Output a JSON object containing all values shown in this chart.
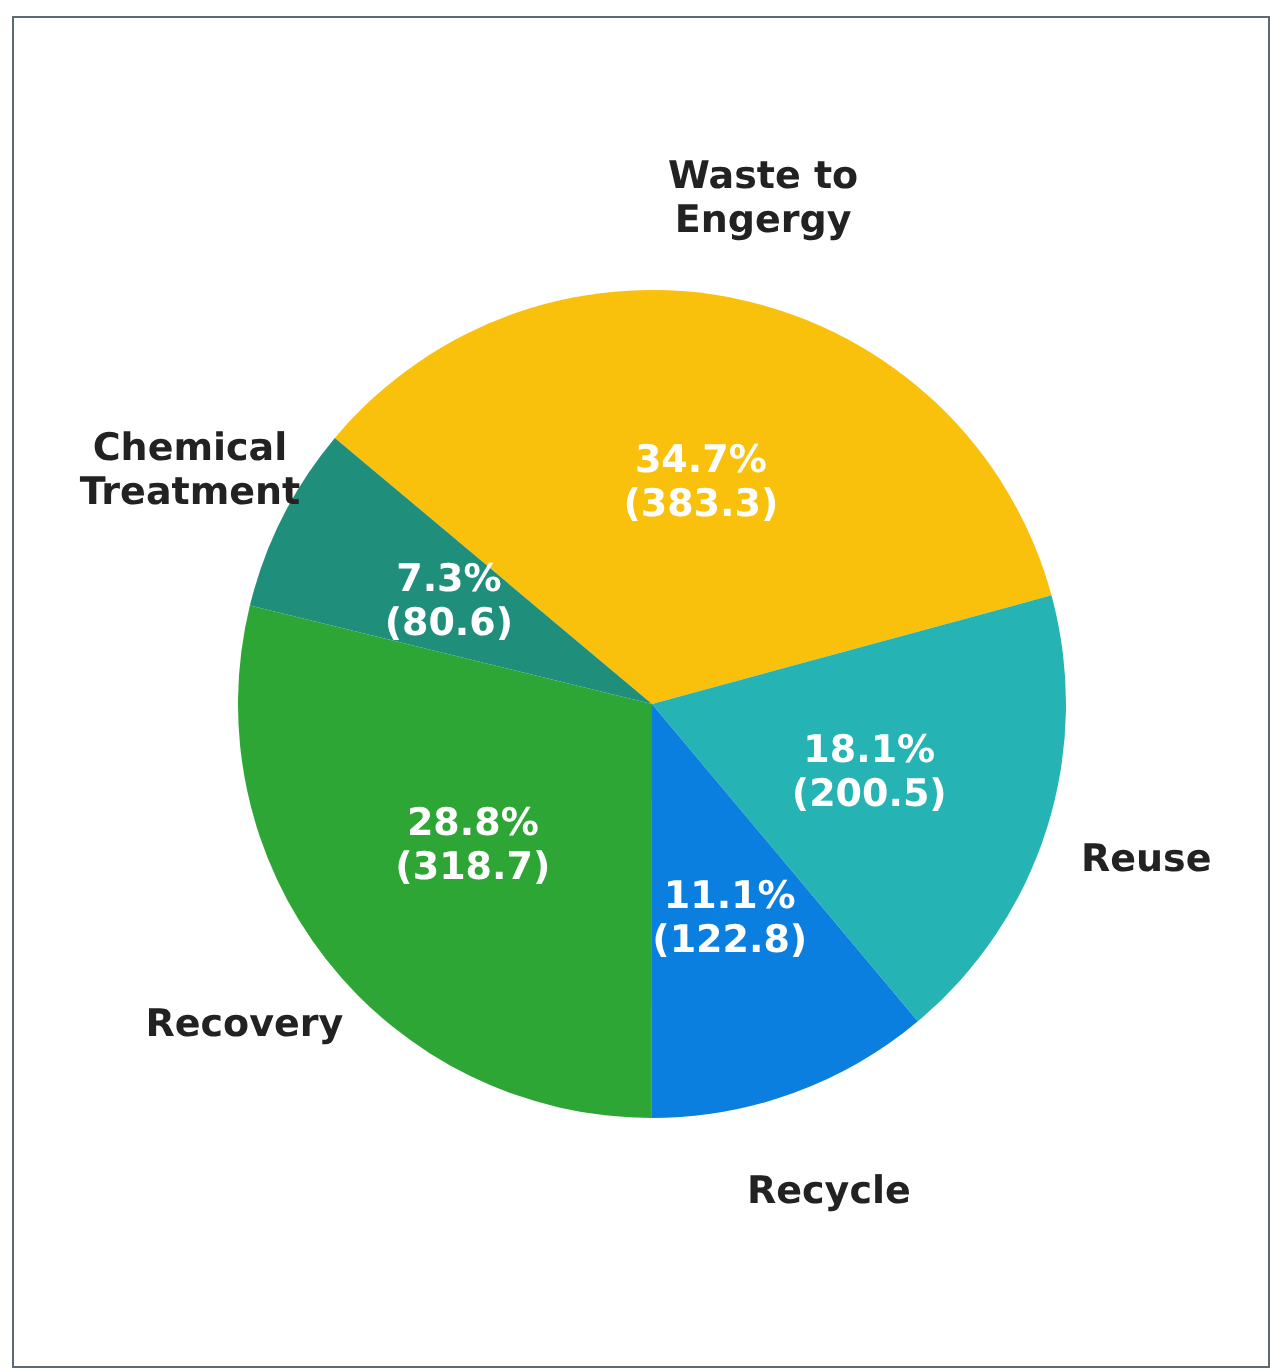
{
  "chart_data": {
    "type": "pie",
    "categories": [
      "Waste to Engergy",
      "Reuse",
      "Recycle",
      "Recovery",
      "Chemical Treatment"
    ],
    "values": [
      383.3,
      200.5,
      122.8,
      318.7,
      80.6
    ],
    "value_labels": [
      "34.7%\n(383.3)",
      "18.1%\n(200.5)",
      "11.1%\n(122.8)",
      "28.8%\n(318.7)",
      "7.3%\n(80.6)"
    ],
    "colors": [
      "#f9c00c",
      "#26b3b3",
      "#0b7fe0",
      "#2ea636",
      "#1f8f7c"
    ]
  }
}
